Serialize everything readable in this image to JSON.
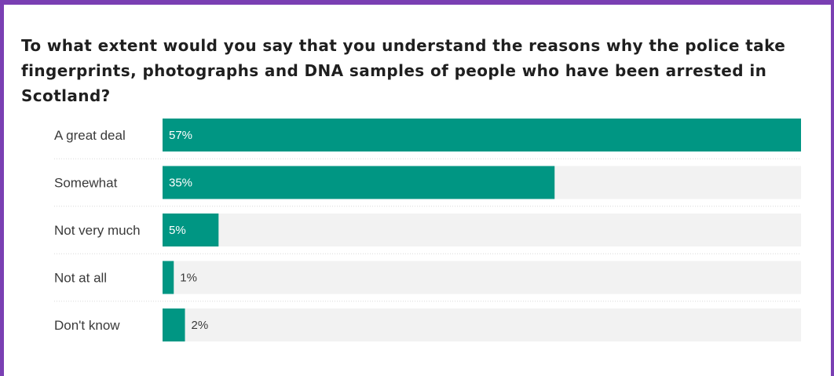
{
  "colors": {
    "frame_border": "#7a3fb3",
    "bar_fill": "#009683",
    "track_fill": "#f2f2f2",
    "separator": "#d9d9d9",
    "label_inside": "#ffffff",
    "label_outside": "#3a3a3a"
  },
  "chart_data": {
    "type": "bar",
    "orientation": "horizontal",
    "title": "To what extent would you say that you understand the reasons why the police take fingerprints, photographs and DNA samples of people who have been arrested in Scotland?",
    "categories": [
      "A great deal",
      "Somewhat",
      "Not very much",
      "Not at all",
      "Don't know"
    ],
    "values": [
      57,
      35,
      5,
      1,
      2
    ],
    "value_labels": [
      "57%",
      "35%",
      "5%",
      "1%",
      "2%"
    ],
    "unit": "%",
    "xlim": [
      0,
      57
    ],
    "grid": false,
    "legend": "none"
  }
}
